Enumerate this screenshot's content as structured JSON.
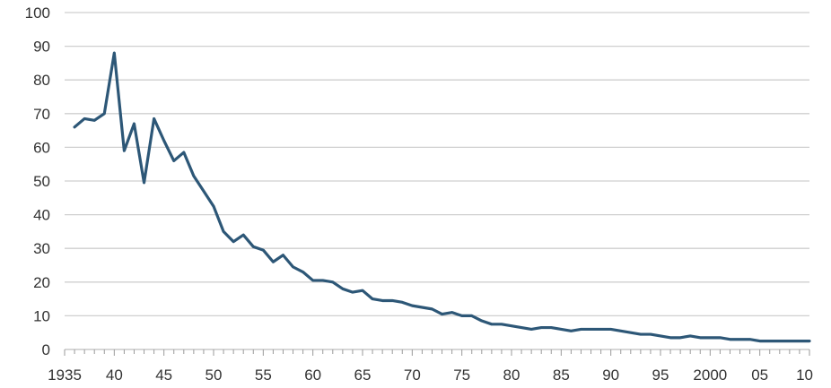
{
  "chart_data": {
    "type": "line",
    "title": "",
    "xlabel": "",
    "ylabel": "",
    "xlim": [
      1935,
      2010
    ],
    "ylim": [
      0,
      100
    ],
    "grid": true,
    "legend": "none",
    "colors": {
      "line": "#2d5777",
      "grid": "#cfcfcf",
      "text": "#333333"
    },
    "x_ticks": [
      {
        "value": 1935,
        "label": "1935"
      },
      {
        "value": 1940,
        "label": "40"
      },
      {
        "value": 1945,
        "label": "45"
      },
      {
        "value": 1950,
        "label": "50"
      },
      {
        "value": 1955,
        "label": "55"
      },
      {
        "value": 1960,
        "label": "60"
      },
      {
        "value": 1965,
        "label": "65"
      },
      {
        "value": 1970,
        "label": "70"
      },
      {
        "value": 1975,
        "label": "75"
      },
      {
        "value": 1980,
        "label": "80"
      },
      {
        "value": 1985,
        "label": "85"
      },
      {
        "value": 1990,
        "label": "90"
      },
      {
        "value": 1995,
        "label": "95"
      },
      {
        "value": 2000,
        "label": "2000"
      },
      {
        "value": 2005,
        "label": "05"
      },
      {
        "value": 2010,
        "label": "10"
      }
    ],
    "y_ticks": [
      {
        "value": 0,
        "label": "0"
      },
      {
        "value": 10,
        "label": "10"
      },
      {
        "value": 20,
        "label": "20"
      },
      {
        "value": 30,
        "label": "30"
      },
      {
        "value": 40,
        "label": "40"
      },
      {
        "value": 50,
        "label": "50"
      },
      {
        "value": 60,
        "label": "60"
      },
      {
        "value": 70,
        "label": "70"
      },
      {
        "value": 80,
        "label": "80"
      },
      {
        "value": 90,
        "label": "90"
      },
      {
        "value": 100,
        "label": "100"
      }
    ],
    "series": [
      {
        "x": [
          1936,
          1937,
          1938,
          1939,
          1940,
          1941,
          1942,
          1943,
          1944,
          1945,
          1946,
          1947,
          1948,
          1949,
          1950,
          1951,
          1952,
          1953,
          1954,
          1955,
          1956,
          1957,
          1958,
          1959,
          1960,
          1961,
          1962,
          1963,
          1964,
          1965,
          1966,
          1967,
          1968,
          1969,
          1970,
          1971,
          1972,
          1973,
          1974,
          1975,
          1976,
          1977,
          1978,
          1979,
          1980,
          1981,
          1982,
          1983,
          1984,
          1985,
          1986,
          1987,
          1988,
          1989,
          1990,
          1991,
          1992,
          1993,
          1994,
          1995,
          1996,
          1997,
          1998,
          1999,
          2000,
          2001,
          2002,
          2003,
          2004,
          2005,
          2006,
          2007,
          2008,
          2009,
          2010
        ],
        "values": [
          66,
          68.5,
          68,
          70,
          88,
          59,
          67,
          49.5,
          68.5,
          62,
          56,
          58.5,
          51.5,
          47,
          42.5,
          35,
          32,
          34,
          30.5,
          29.5,
          26,
          28,
          24.5,
          23,
          20.5,
          20.5,
          20,
          18,
          17,
          17.5,
          15,
          14.5,
          14.5,
          14,
          13,
          12.5,
          12,
          10.5,
          11,
          10,
          10,
          8.5,
          7.5,
          7.5,
          7,
          6.5,
          6,
          6.5,
          6.5,
          6,
          5.5,
          6,
          6,
          6,
          6,
          5.5,
          5,
          4.5,
          4.5,
          4,
          3.5,
          3.5,
          4,
          3.5,
          3.5,
          3.5,
          3,
          3,
          3,
          2.5,
          2.5,
          2.5,
          2.5,
          2.5,
          2.5
        ]
      }
    ]
  }
}
